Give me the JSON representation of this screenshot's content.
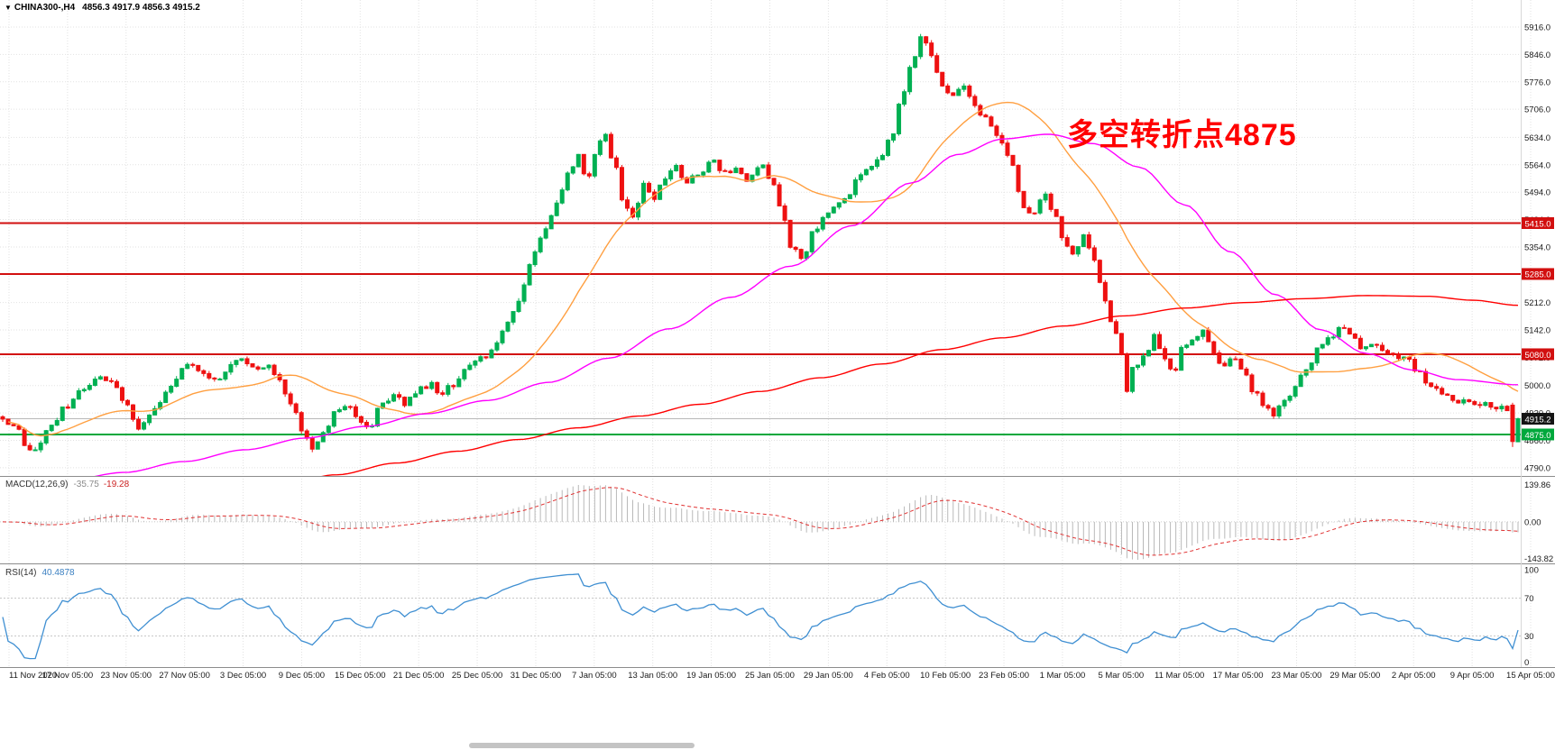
{
  "header": {
    "dropdown_icon": "▼",
    "symbol": "CHINA300-,H4",
    "ohlc_values": "4856.3 4917.9 4856.3 4915.2"
  },
  "annotation": {
    "text": "多空转折点4875",
    "color": "#ff0000"
  },
  "indicators": {
    "macd": {
      "label": "MACD(12,26,9)",
      "main_value": "-35.75",
      "signal_value": "-19.28"
    },
    "rsi": {
      "label": "RSI(14)",
      "value": "40.4878"
    }
  },
  "chart_data": {
    "type": "candlestick",
    "symbol": "CHINA300-",
    "timeframe": "H4",
    "title": "CHINA300-,H4",
    "bars": 280,
    "seed": 12,
    "noise_amplitude": 9,
    "wick_amplitude": 8,
    "colors": {
      "up": "#00b052",
      "down": "#ee1111",
      "grid": "#e2e2e2",
      "axis_text": "#1a1a1a",
      "current_price_line": "#b8b8b8",
      "current_price_box": "#141414",
      "separator": "#8c8c8c",
      "macd_histogram": "#b9b9b9",
      "macd_signal": "#e03131",
      "rsi_line": "#3f8fd2",
      "rsi_levels": "#c8c8c8"
    },
    "y_axis": {
      "range_top": 5985,
      "range_bottom": 4769,
      "ticks": [
        5916.0,
        5846.0,
        5776.0,
        5706.0,
        5634.0,
        5564.0,
        5494.0,
        5424.0,
        5354.0,
        5284.0,
        5212.0,
        5142.0,
        5072.0,
        5000.0,
        4930.0,
        4860.0,
        4790.0
      ]
    },
    "x_axis": {
      "labels": [
        "11 Nov 2020",
        "17 Nov 05:00",
        "23 Nov 05:00",
        "27 Nov 05:00",
        "3 Dec 05:00",
        "9 Dec 05:00",
        "15 Dec 05:00",
        "21 Dec 05:00",
        "25 Dec 05:00",
        "31 Dec 05:00",
        "7 Jan 05:00",
        "13 Jan 05:00",
        "19 Jan 05:00",
        "25 Jan 05:00",
        "29 Jan 05:00",
        "4 Feb 05:00",
        "10 Feb 05:00",
        "23 Feb 05:00",
        "1 Mar 05:00",
        "5 Mar 05:00",
        "11 Mar 05:00",
        "17 Mar 05:00",
        "23 Mar 05:00",
        "29 Mar 05:00",
        "2 Apr 05:00",
        "9 Apr 05:00",
        "15 Apr 05:00"
      ]
    },
    "horizontal_levels": [
      {
        "price": 5415.0,
        "color": "#d20f0f",
        "label": "5415.0",
        "width": 2
      },
      {
        "price": 5285.0,
        "color": "#d20f0f",
        "label": "5285.0",
        "width": 2
      },
      {
        "price": 5080.0,
        "color": "#d20f0f",
        "label": "5080.0",
        "width": 2
      },
      {
        "price": 4875.0,
        "color": "#00a83c",
        "label": "4875.0",
        "width": 2
      }
    ],
    "current_price": {
      "value": 4915.2,
      "label": "4915.2"
    },
    "last_candles": [
      {
        "o": 4950.0,
        "h": 4956.0,
        "l": 4843.0,
        "c": 4857.0
      },
      {
        "o": 4856.3,
        "h": 4917.9,
        "l": 4856.3,
        "c": 4915.2
      }
    ],
    "price_path_waypoints": [
      [
        0.0,
        4918
      ],
      [
        0.008,
        4895
      ],
      [
        0.015,
        4852
      ],
      [
        0.022,
        4832
      ],
      [
        0.03,
        4888
      ],
      [
        0.04,
        4938
      ],
      [
        0.052,
        4985
      ],
      [
        0.062,
        5012
      ],
      [
        0.07,
        5018
      ],
      [
        0.08,
        4962
      ],
      [
        0.09,
        4895
      ],
      [
        0.1,
        4945
      ],
      [
        0.112,
        5005
      ],
      [
        0.122,
        5058
      ],
      [
        0.13,
        5040
      ],
      [
        0.14,
        5012
      ],
      [
        0.15,
        5052
      ],
      [
        0.158,
        5075
      ],
      [
        0.166,
        5042
      ],
      [
        0.175,
        5055
      ],
      [
        0.183,
        5008
      ],
      [
        0.192,
        4940
      ],
      [
        0.2,
        4868
      ],
      [
        0.206,
        4840
      ],
      [
        0.212,
        4890
      ],
      [
        0.22,
        4935
      ],
      [
        0.228,
        4950
      ],
      [
        0.236,
        4915
      ],
      [
        0.242,
        4888
      ],
      [
        0.25,
        4950
      ],
      [
        0.258,
        4975
      ],
      [
        0.266,
        4952
      ],
      [
        0.274,
        4988
      ],
      [
        0.282,
        5002
      ],
      [
        0.29,
        4982
      ],
      [
        0.298,
        5002
      ],
      [
        0.306,
        5048
      ],
      [
        0.314,
        5068
      ],
      [
        0.322,
        5082
      ],
      [
        0.33,
        5132
      ],
      [
        0.34,
        5215
      ],
      [
        0.35,
        5330
      ],
      [
        0.358,
        5408
      ],
      [
        0.366,
        5465
      ],
      [
        0.374,
        5548
      ],
      [
        0.38,
        5595
      ],
      [
        0.386,
        5522
      ],
      [
        0.392,
        5608
      ],
      [
        0.397,
        5648
      ],
      [
        0.403,
        5575
      ],
      [
        0.41,
        5468
      ],
      [
        0.416,
        5428
      ],
      [
        0.423,
        5512
      ],
      [
        0.43,
        5482
      ],
      [
        0.437,
        5535
      ],
      [
        0.444,
        5560
      ],
      [
        0.452,
        5518
      ],
      [
        0.46,
        5545
      ],
      [
        0.468,
        5572
      ],
      [
        0.476,
        5540
      ],
      [
        0.484,
        5562
      ],
      [
        0.492,
        5528
      ],
      [
        0.5,
        5568
      ],
      [
        0.508,
        5512
      ],
      [
        0.515,
        5438
      ],
      [
        0.521,
        5352
      ],
      [
        0.528,
        5325
      ],
      [
        0.535,
        5392
      ],
      [
        0.542,
        5438
      ],
      [
        0.55,
        5460
      ],
      [
        0.558,
        5492
      ],
      [
        0.565,
        5538
      ],
      [
        0.572,
        5552
      ],
      [
        0.58,
        5585
      ],
      [
        0.587,
        5645
      ],
      [
        0.594,
        5742
      ],
      [
        0.601,
        5835
      ],
      [
        0.607,
        5902
      ],
      [
        0.613,
        5845
      ],
      [
        0.62,
        5768
      ],
      [
        0.627,
        5735
      ],
      [
        0.633,
        5766
      ],
      [
        0.64,
        5722
      ],
      [
        0.648,
        5682
      ],
      [
        0.655,
        5645
      ],
      [
        0.66,
        5628
      ],
      [
        0.666,
        5562
      ],
      [
        0.673,
        5462
      ],
      [
        0.68,
        5435
      ],
      [
        0.687,
        5488
      ],
      [
        0.694,
        5438
      ],
      [
        0.7,
        5365
      ],
      [
        0.707,
        5335
      ],
      [
        0.713,
        5385
      ],
      [
        0.72,
        5318
      ],
      [
        0.727,
        5225
      ],
      [
        0.733,
        5150
      ],
      [
        0.74,
        5075
      ],
      [
        0.742,
        4978
      ],
      [
        0.744,
        5042
      ],
      [
        0.746,
        5052
      ],
      [
        0.753,
        5068
      ],
      [
        0.76,
        5122
      ],
      [
        0.766,
        5072
      ],
      [
        0.772,
        5028
      ],
      [
        0.778,
        5092
      ],
      [
        0.785,
        5118
      ],
      [
        0.792,
        5142
      ],
      [
        0.798,
        5085
      ],
      [
        0.805,
        5052
      ],
      [
        0.812,
        5082
      ],
      [
        0.818,
        5048
      ],
      [
        0.825,
        4992
      ],
      [
        0.832,
        4948
      ],
      [
        0.838,
        4925
      ],
      [
        0.845,
        4958
      ],
      [
        0.852,
        4992
      ],
      [
        0.86,
        5042
      ],
      [
        0.868,
        5092
      ],
      [
        0.876,
        5122
      ],
      [
        0.884,
        5148
      ],
      [
        0.89,
        5128
      ],
      [
        0.897,
        5095
      ],
      [
        0.905,
        5108
      ],
      [
        0.912,
        5088
      ],
      [
        0.92,
        5072
      ],
      [
        0.928,
        5062
      ],
      [
        0.935,
        5028
      ],
      [
        0.942,
        4998
      ],
      [
        0.95,
        4978
      ],
      [
        0.958,
        4952
      ],
      [
        0.966,
        4962
      ],
      [
        0.974,
        4945
      ],
      [
        0.982,
        4950
      ],
      [
        0.99,
        4945
      ],
      [
        1.0,
        4915
      ]
    ],
    "moving_averages": [
      {
        "name": "ma-fast",
        "color": "#ff9f40",
        "type": "sma",
        "period": 25
      },
      {
        "name": "ma-mid",
        "color": "#ff00ff",
        "type": "path",
        "points": [
          [
            0.0,
            4742
          ],
          [
            0.04,
            4756
          ],
          [
            0.08,
            4778
          ],
          [
            0.12,
            4806
          ],
          [
            0.16,
            4836
          ],
          [
            0.2,
            4866
          ],
          [
            0.24,
            4896
          ],
          [
            0.28,
            4928
          ],
          [
            0.32,
            4962
          ],
          [
            0.36,
            5008
          ],
          [
            0.4,
            5070
          ],
          [
            0.44,
            5145
          ],
          [
            0.48,
            5225
          ],
          [
            0.52,
            5305
          ],
          [
            0.56,
            5408
          ],
          [
            0.6,
            5518
          ],
          [
            0.63,
            5590
          ],
          [
            0.66,
            5630
          ],
          [
            0.69,
            5642
          ],
          [
            0.72,
            5618
          ],
          [
            0.75,
            5558
          ],
          [
            0.78,
            5462
          ],
          [
            0.81,
            5342
          ],
          [
            0.84,
            5232
          ],
          [
            0.87,
            5142
          ],
          [
            0.9,
            5082
          ],
          [
            0.93,
            5040
          ],
          [
            0.96,
            5015
          ],
          [
            1.0,
            5002
          ]
        ]
      },
      {
        "name": "ma-slow",
        "color": "#ff0000",
        "type": "path",
        "points": [
          [
            0.18,
            4742
          ],
          [
            0.22,
            4772
          ],
          [
            0.26,
            4802
          ],
          [
            0.3,
            4832
          ],
          [
            0.34,
            4862
          ],
          [
            0.38,
            4892
          ],
          [
            0.42,
            4922
          ],
          [
            0.46,
            4952
          ],
          [
            0.5,
            4985
          ],
          [
            0.54,
            5020
          ],
          [
            0.58,
            5055
          ],
          [
            0.62,
            5092
          ],
          [
            0.66,
            5122
          ],
          [
            0.7,
            5152
          ],
          [
            0.74,
            5178
          ],
          [
            0.78,
            5198
          ],
          [
            0.82,
            5212
          ],
          [
            0.86,
            5222
          ],
          [
            0.9,
            5230
          ],
          [
            0.94,
            5228
          ],
          [
            0.97,
            5218
          ],
          [
            1.0,
            5205
          ]
        ]
      }
    ],
    "macd": {
      "fast": 12,
      "slow": 26,
      "signal": 9,
      "axis_max": 139.86,
      "axis_min": -143.82,
      "axis_labels": [
        "139.86",
        "0.00",
        "-143.82"
      ]
    },
    "rsi": {
      "period": 14,
      "levels": [
        70,
        30
      ],
      "axis_labels": [
        100,
        70,
        30,
        0
      ]
    }
  }
}
